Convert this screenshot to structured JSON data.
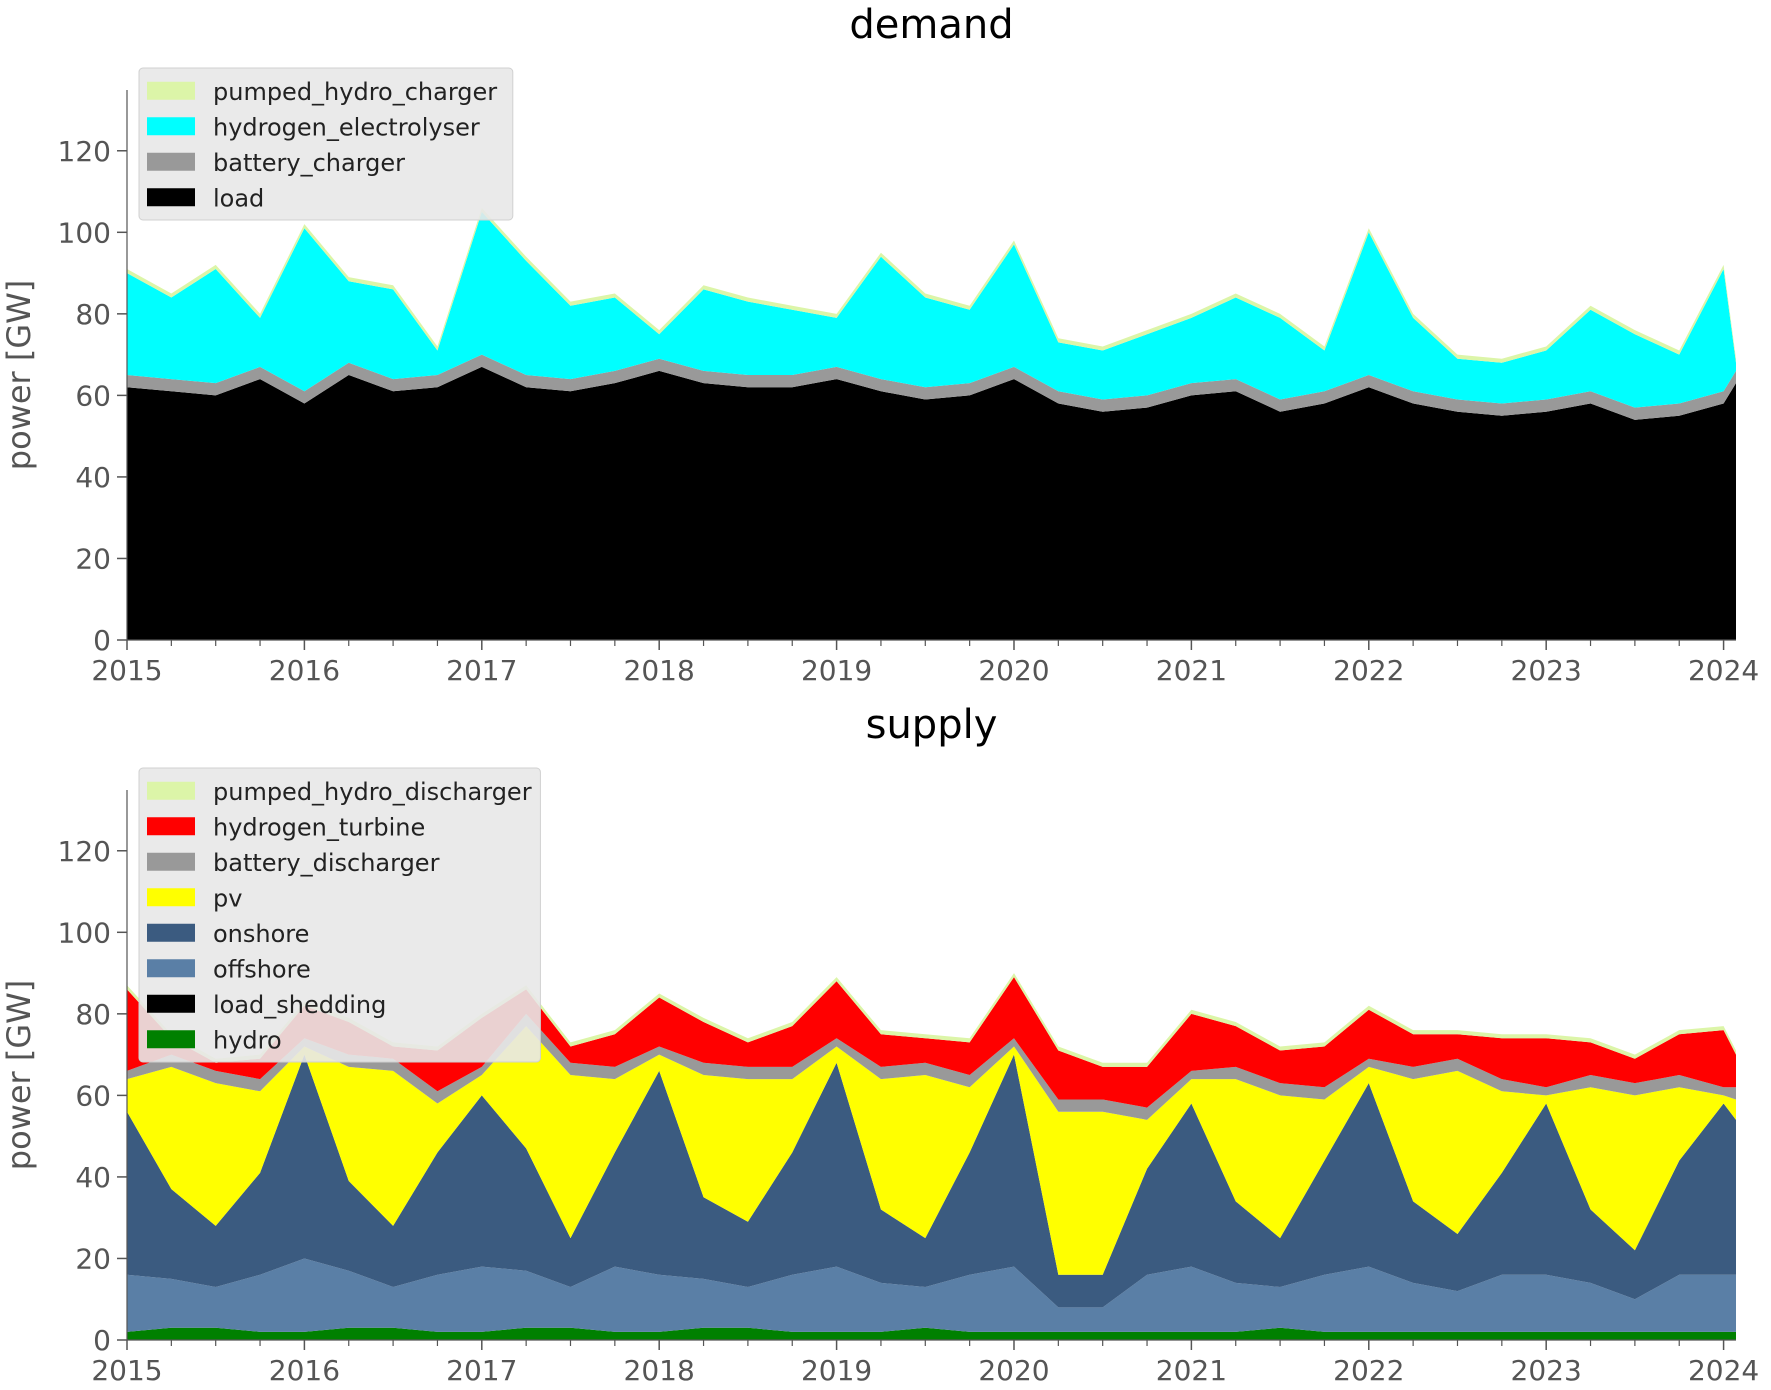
{
  "colors": {
    "pumped_hydro_charger": "#dcf5a8",
    "hydrogen_electrolyser": "#00ffff",
    "battery_charger": "#999999",
    "load": "#000000",
    "pumped_hydro_discharger": "#dcf5a8",
    "hydrogen_turbine": "#ff0000",
    "battery_discharger": "#999999",
    "pv": "#ffff00",
    "onshore": "#3b5b80",
    "offshore": "#5a7fa6",
    "load_shedding": "#000000",
    "hydro": "#008000",
    "axis_text": "#555555"
  },
  "chart_data": [
    {
      "type": "area",
      "stacked": true,
      "title": "demand",
      "xlabel": "",
      "ylabel": "power [GW]",
      "xlim": [
        2015.0,
        2024.07
      ],
      "ylim": [
        0,
        130
      ],
      "xticks": [
        2015,
        2016,
        2017,
        2018,
        2019,
        2020,
        2021,
        2022,
        2023,
        2024
      ],
      "yticks": [
        0,
        20,
        40,
        60,
        80,
        100,
        120
      ],
      "grid": false,
      "legend_position": "top-left",
      "legend": [
        "pumped_hydro_charger",
        "hydrogen_electrolyser",
        "battery_charger",
        "load"
      ],
      "x": [
        2015.0,
        2015.25,
        2015.5,
        2015.75,
        2016.0,
        2016.25,
        2016.5,
        2016.75,
        2017.0,
        2017.25,
        2017.5,
        2017.75,
        2018.0,
        2018.25,
        2018.5,
        2018.75,
        2019.0,
        2019.25,
        2019.5,
        2019.75,
        2020.0,
        2020.25,
        2020.5,
        2020.75,
        2021.0,
        2021.25,
        2021.5,
        2021.75,
        2022.0,
        2022.25,
        2022.5,
        2022.75,
        2023.0,
        2023.25,
        2023.5,
        2023.75,
        2024.0,
        2024.07
      ],
      "series": [
        {
          "name": "load",
          "values": [
            62,
            61,
            60,
            64,
            58,
            65,
            61,
            62,
            67,
            62,
            61,
            63,
            66,
            63,
            62,
            62,
            64,
            61,
            59,
            60,
            64,
            58,
            56,
            57,
            60,
            61,
            56,
            58,
            62,
            58,
            56,
            55,
            56,
            58,
            54,
            55,
            58,
            63
          ]
        },
        {
          "name": "battery_charger",
          "values": [
            3,
            3,
            3,
            3,
            3,
            3,
            3,
            3,
            3,
            3,
            3,
            3,
            3,
            3,
            3,
            3,
            3,
            3,
            3,
            3,
            3,
            3,
            3,
            3,
            3,
            3,
            3,
            3,
            3,
            3,
            3,
            3,
            3,
            3,
            3,
            3,
            3,
            3
          ]
        },
        {
          "name": "hydrogen_electrolyser",
          "values": [
            25,
            20,
            28,
            12,
            40,
            20,
            22,
            6,
            35,
            28,
            18,
            18,
            6,
            20,
            18,
            16,
            12,
            30,
            22,
            18,
            30,
            12,
            12,
            15,
            16,
            20,
            20,
            10,
            35,
            18,
            10,
            10,
            12,
            20,
            18,
            12,
            30,
            2
          ]
        },
        {
          "name": "pumped_hydro_charger",
          "values": [
            1,
            1,
            1,
            1,
            1,
            1,
            1,
            1,
            1,
            1,
            1,
            1,
            1,
            1,
            1,
            1,
            1,
            1,
            1,
            1,
            1,
            1,
            1,
            1,
            1,
            1,
            1,
            1,
            1,
            1,
            1,
            1,
            1,
            1,
            1,
            1,
            1,
            1
          ]
        }
      ]
    },
    {
      "type": "area",
      "stacked": true,
      "title": "supply",
      "xlabel": "",
      "ylabel": "power [GW]",
      "xlim": [
        2015.0,
        2024.07
      ],
      "ylim": [
        0,
        130
      ],
      "xticks": [
        2015,
        2016,
        2017,
        2018,
        2019,
        2020,
        2021,
        2022,
        2023,
        2024
      ],
      "yticks": [
        0,
        20,
        40,
        60,
        80,
        100,
        120
      ],
      "grid": false,
      "legend_position": "top-left",
      "legend": [
        "pumped_hydro_discharger",
        "hydrogen_turbine",
        "battery_discharger",
        "pv",
        "onshore",
        "offshore",
        "load_shedding",
        "hydro"
      ],
      "x": [
        2015.0,
        2015.25,
        2015.5,
        2015.75,
        2016.0,
        2016.25,
        2016.5,
        2016.75,
        2017.0,
        2017.25,
        2017.5,
        2017.75,
        2018.0,
        2018.25,
        2018.5,
        2018.75,
        2019.0,
        2019.25,
        2019.5,
        2019.75,
        2020.0,
        2020.25,
        2020.5,
        2020.75,
        2021.0,
        2021.25,
        2021.5,
        2021.75,
        2022.0,
        2022.25,
        2022.5,
        2022.75,
        2023.0,
        2023.25,
        2023.5,
        2023.75,
        2024.0,
        2024.07
      ],
      "series": [
        {
          "name": "hydro",
          "values": [
            2,
            3,
            3,
            2,
            2,
            3,
            3,
            2,
            2,
            3,
            3,
            2,
            2,
            3,
            3,
            2,
            2,
            2,
            3,
            2,
            2,
            2,
            2,
            2,
            2,
            2,
            3,
            2,
            2,
            2,
            2,
            2,
            2,
            2,
            2,
            2,
            2,
            2
          ]
        },
        {
          "name": "load_shedding",
          "values": [
            0,
            0,
            0,
            0,
            0,
            0,
            0,
            0,
            0,
            0,
            0,
            0,
            0,
            0,
            0,
            0,
            0,
            0,
            0,
            0,
            0,
            0,
            0,
            0,
            0,
            0,
            0,
            0,
            0,
            0,
            0,
            0,
            0,
            0,
            0,
            0,
            0,
            0
          ]
        },
        {
          "name": "offshore",
          "values": [
            14,
            12,
            10,
            14,
            18,
            14,
            10,
            14,
            16,
            14,
            10,
            16,
            14,
            12,
            10,
            14,
            16,
            12,
            10,
            14,
            16,
            6,
            6,
            14,
            16,
            12,
            10,
            14,
            16,
            12,
            10,
            14,
            14,
            12,
            8,
            14,
            14,
            14
          ]
        },
        {
          "name": "onshore",
          "values": [
            40,
            22,
            15,
            25,
            50,
            22,
            15,
            30,
            42,
            30,
            12,
            28,
            50,
            20,
            16,
            30,
            50,
            18,
            12,
            30,
            52,
            8,
            8,
            26,
            40,
            20,
            12,
            28,
            45,
            20,
            14,
            25,
            42,
            18,
            12,
            28,
            42,
            38
          ]
        },
        {
          "name": "pv",
          "values": [
            8,
            30,
            35,
            20,
            2,
            28,
            38,
            12,
            5,
            30,
            40,
            18,
            4,
            30,
            35,
            18,
            4,
            32,
            40,
            16,
            2,
            40,
            40,
            12,
            6,
            30,
            35,
            15,
            4,
            30,
            40,
            20,
            2,
            30,
            38,
            18,
            2,
            5
          ]
        },
        {
          "name": "battery_discharger",
          "values": [
            2,
            3,
            3,
            3,
            2,
            3,
            3,
            3,
            2,
            3,
            3,
            3,
            2,
            3,
            3,
            3,
            2,
            3,
            3,
            3,
            2,
            3,
            3,
            3,
            2,
            3,
            3,
            3,
            2,
            3,
            3,
            3,
            2,
            3,
            3,
            3,
            2,
            3
          ]
        },
        {
          "name": "hydrogen_turbine",
          "values": [
            20,
            4,
            2,
            5,
            8,
            8,
            3,
            10,
            12,
            6,
            4,
            8,
            12,
            10,
            6,
            10,
            14,
            8,
            6,
            8,
            15,
            12,
            8,
            10,
            14,
            10,
            8,
            10,
            12,
            8,
            6,
            10,
            12,
            8,
            6,
            10,
            14,
            8
          ]
        },
        {
          "name": "pumped_hydro_discharger",
          "values": [
            1,
            1,
            1,
            1,
            1,
            1,
            1,
            1,
            1,
            1,
            1,
            1,
            1,
            1,
            1,
            1,
            1,
            1,
            1,
            1,
            1,
            1,
            1,
            1,
            1,
            1,
            1,
            1,
            1,
            1,
            1,
            1,
            1,
            1,
            1,
            1,
            1,
            1
          ]
        }
      ]
    }
  ]
}
